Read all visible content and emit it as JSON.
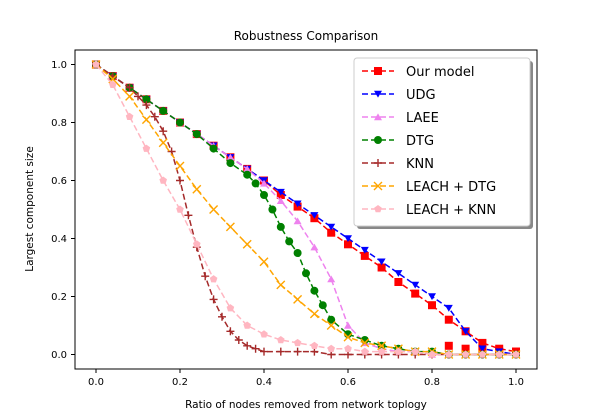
{
  "chart_data": {
    "type": "line",
    "title": "Robustness Comparison",
    "xlabel": "Ratio of nodes removed from network toplogy",
    "ylabel": "Largest component size",
    "xlim": [
      -0.05,
      1.05
    ],
    "ylim": [
      -0.05,
      1.05
    ],
    "xticks": [
      0.0,
      0.2,
      0.4,
      0.6,
      0.8,
      1.0
    ],
    "yticks": [
      0.0,
      0.2,
      0.4,
      0.6,
      0.8,
      1.0
    ],
    "xtick_labels": [
      "0.0",
      "0.2",
      "0.4",
      "0.6",
      "0.8",
      "1.0"
    ],
    "ytick_labels": [
      "0.0",
      "0.2",
      "0.4",
      "0.6",
      "0.8",
      "1.0"
    ],
    "grid": false,
    "legend_position": "top-right",
    "series": [
      {
        "name": "Our model",
        "color": "#ff0000",
        "marker": "square",
        "x": [
          0.0,
          0.04,
          0.08,
          0.12,
          0.16,
          0.2,
          0.24,
          0.28,
          0.32,
          0.36,
          0.4,
          0.44,
          0.48,
          0.52,
          0.56,
          0.6,
          0.64,
          0.68,
          0.72,
          0.76,
          0.8,
          0.84,
          0.88,
          0.92,
          0.96,
          1.0
        ],
        "y": [
          1.0,
          0.96,
          0.92,
          0.88,
          0.84,
          0.8,
          0.76,
          0.72,
          0.68,
          0.64,
          0.6,
          0.55,
          0.51,
          0.47,
          0.42,
          0.38,
          0.34,
          0.3,
          0.25,
          0.21,
          0.17,
          0.12,
          0.08,
          0.04,
          0.02,
          0.01
        ],
        "x_extra": [
          0.84,
          0.88,
          0.92,
          0.96,
          1.0
        ],
        "y_extra": [
          0.03,
          0.02,
          0.02,
          0.01,
          0.01
        ]
      },
      {
        "name": "UDG",
        "color": "#0000ff",
        "marker": "triangle-down",
        "x": [
          0.0,
          0.04,
          0.08,
          0.12,
          0.16,
          0.2,
          0.24,
          0.28,
          0.32,
          0.36,
          0.4,
          0.44,
          0.48,
          0.52,
          0.56,
          0.6,
          0.64,
          0.68,
          0.72,
          0.76,
          0.8,
          0.84,
          0.88,
          0.92,
          0.96,
          1.0
        ],
        "y": [
          1.0,
          0.96,
          0.92,
          0.88,
          0.84,
          0.8,
          0.76,
          0.72,
          0.68,
          0.64,
          0.6,
          0.56,
          0.52,
          0.48,
          0.44,
          0.4,
          0.36,
          0.32,
          0.28,
          0.24,
          0.2,
          0.16,
          0.08,
          0.02,
          0.01,
          0.0
        ]
      },
      {
        "name": "LAEE",
        "color": "#ee82ee",
        "marker": "triangle-up",
        "x": [
          0.0,
          0.04,
          0.08,
          0.12,
          0.16,
          0.2,
          0.24,
          0.28,
          0.32,
          0.36,
          0.4,
          0.44,
          0.48,
          0.52,
          0.56,
          0.6,
          0.64,
          0.68,
          0.72,
          0.76,
          0.8,
          0.84,
          0.88,
          0.92,
          0.96,
          1.0
        ],
        "y": [
          1.0,
          0.96,
          0.92,
          0.88,
          0.84,
          0.8,
          0.76,
          0.72,
          0.68,
          0.64,
          0.59,
          0.53,
          0.46,
          0.37,
          0.26,
          0.1,
          0.04,
          0.02,
          0.01,
          0.01,
          0.0,
          0.0,
          0.0,
          0.0,
          0.0,
          0.0
        ]
      },
      {
        "name": "DTG",
        "color": "#008000",
        "marker": "circle",
        "x": [
          0.0,
          0.04,
          0.08,
          0.12,
          0.16,
          0.2,
          0.24,
          0.28,
          0.32,
          0.36,
          0.38,
          0.4,
          0.42,
          0.44,
          0.46,
          0.48,
          0.5,
          0.52,
          0.54,
          0.56,
          0.6,
          0.64,
          0.68,
          0.72,
          0.76,
          0.8,
          0.84,
          0.88,
          0.92,
          0.96,
          1.0
        ],
        "y": [
          1.0,
          0.96,
          0.92,
          0.88,
          0.84,
          0.8,
          0.76,
          0.71,
          0.66,
          0.62,
          0.59,
          0.55,
          0.5,
          0.44,
          0.39,
          0.35,
          0.28,
          0.22,
          0.17,
          0.12,
          0.07,
          0.05,
          0.03,
          0.02,
          0.01,
          0.01,
          0.0,
          0.0,
          0.0,
          0.0,
          0.0
        ]
      },
      {
        "name": "KNN",
        "color": "#a52a2a",
        "marker": "plus",
        "x": [
          0.0,
          0.04,
          0.08,
          0.1,
          0.12,
          0.14,
          0.16,
          0.18,
          0.2,
          0.22,
          0.24,
          0.26,
          0.28,
          0.3,
          0.32,
          0.34,
          0.36,
          0.38,
          0.4,
          0.44,
          0.48,
          0.52,
          0.56,
          0.6,
          0.64,
          0.68,
          0.72,
          0.76,
          0.8,
          0.84,
          0.88,
          0.92,
          0.96,
          1.0
        ],
        "y": [
          1.0,
          0.96,
          0.92,
          0.89,
          0.86,
          0.82,
          0.77,
          0.7,
          0.6,
          0.48,
          0.37,
          0.27,
          0.19,
          0.13,
          0.08,
          0.05,
          0.03,
          0.02,
          0.01,
          0.01,
          0.01,
          0.01,
          0.0,
          0.0,
          0.0,
          0.0,
          0.0,
          0.0,
          0.0,
          0.0,
          0.0,
          0.0,
          0.0,
          0.0
        ]
      },
      {
        "name": "LEACH + DTG",
        "color": "#ffa500",
        "marker": "x",
        "x": [
          0.0,
          0.04,
          0.08,
          0.12,
          0.16,
          0.2,
          0.24,
          0.28,
          0.32,
          0.36,
          0.4,
          0.44,
          0.48,
          0.52,
          0.56,
          0.6,
          0.64,
          0.68,
          0.72,
          0.76,
          0.8,
          0.84,
          0.88,
          0.92,
          0.96,
          1.0
        ],
        "y": [
          1.0,
          0.95,
          0.89,
          0.81,
          0.73,
          0.65,
          0.57,
          0.5,
          0.44,
          0.38,
          0.32,
          0.24,
          0.19,
          0.14,
          0.1,
          0.06,
          0.04,
          0.03,
          0.02,
          0.01,
          0.01,
          0.0,
          0.0,
          0.0,
          0.0,
          0.0
        ]
      },
      {
        "name": "LEACH + KNN",
        "color": "#ffb6c1",
        "marker": "pentagon",
        "x": [
          0.0,
          0.04,
          0.08,
          0.12,
          0.16,
          0.2,
          0.24,
          0.28,
          0.32,
          0.36,
          0.4,
          0.44,
          0.48,
          0.52,
          0.56,
          0.6,
          0.64,
          0.68,
          0.72,
          0.76,
          0.8,
          0.84,
          0.88,
          0.92,
          0.96,
          1.0
        ],
        "y": [
          1.0,
          0.93,
          0.82,
          0.71,
          0.6,
          0.5,
          0.38,
          0.26,
          0.16,
          0.1,
          0.07,
          0.05,
          0.04,
          0.03,
          0.02,
          0.02,
          0.01,
          0.01,
          0.01,
          0.01,
          0.0,
          0.0,
          0.0,
          0.0,
          0.0,
          0.0
        ]
      }
    ]
  }
}
